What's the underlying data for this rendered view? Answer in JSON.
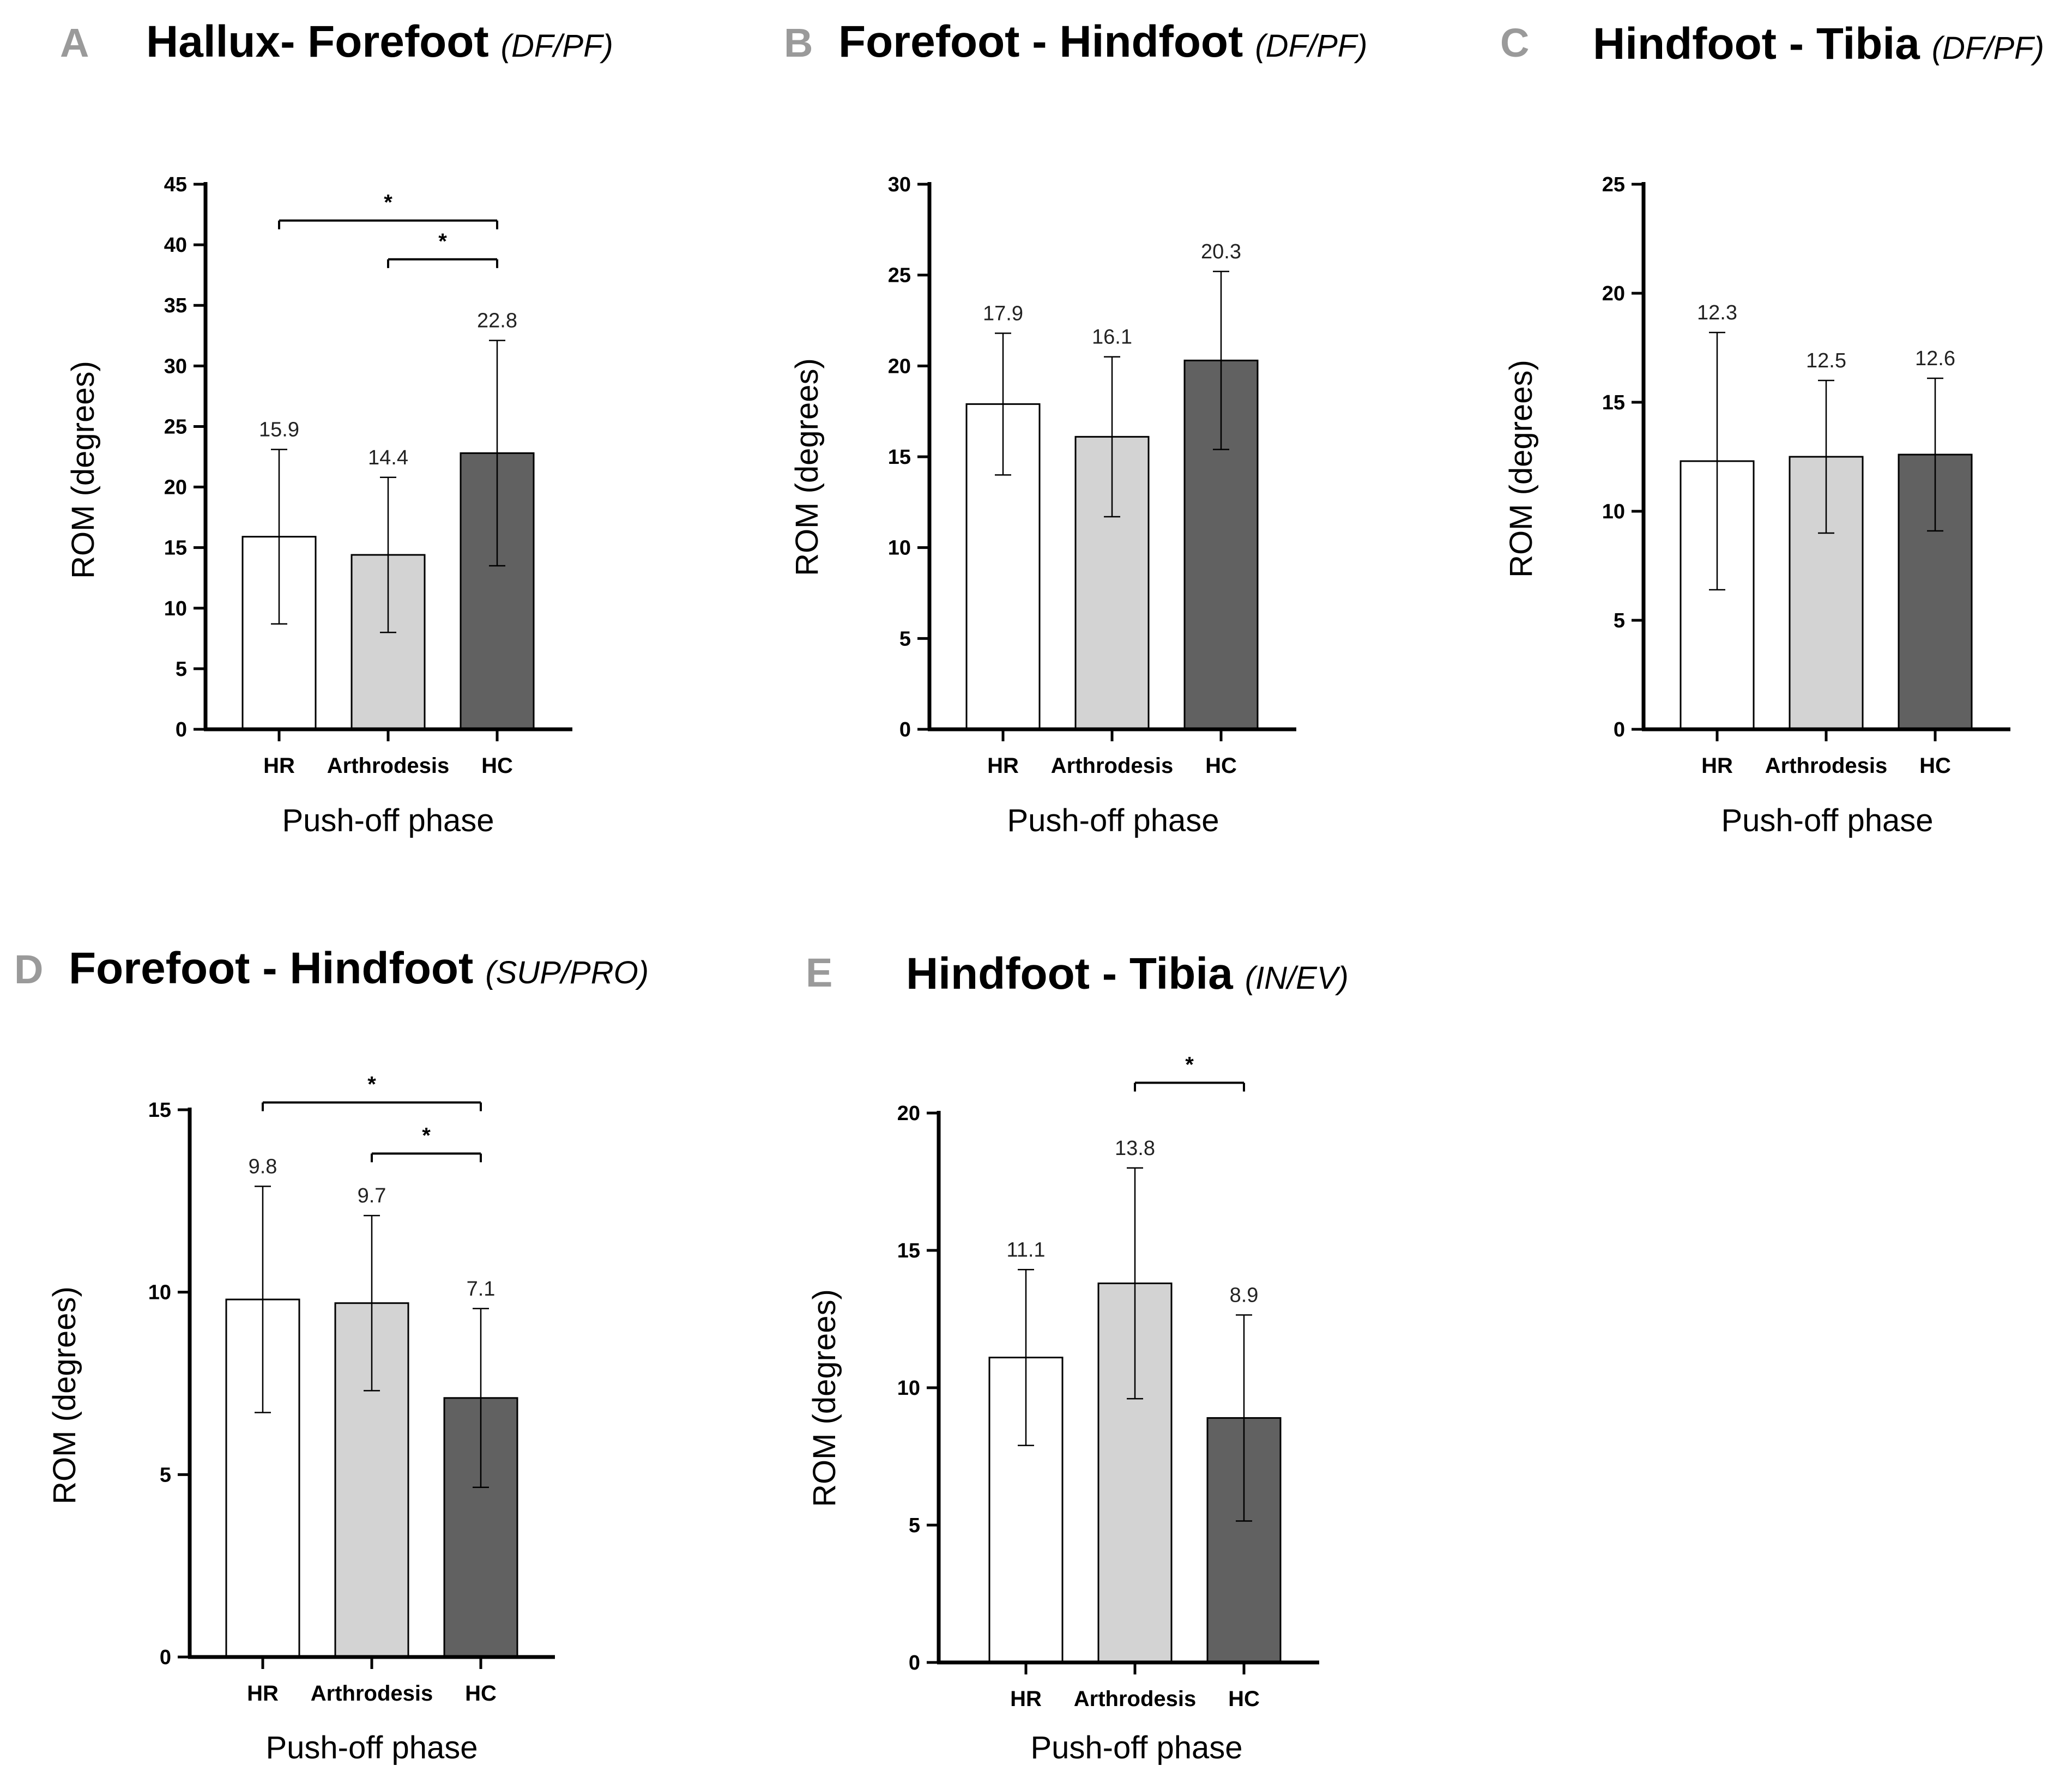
{
  "figure": {
    "colors": {
      "HR": "#ffffff",
      "Arthrodesis": "#d3d3d3",
      "HC": "#616161",
      "axis": "#000000",
      "panel_letter": "#9a9a9a"
    }
  },
  "chart_data": [
    {
      "panel": "A",
      "type": "bar",
      "title": "Hallux- Forefoot",
      "subtitle": "(DF/PF)",
      "xlabel": "Push-off phase",
      "ylabel": "ROM (degrees)",
      "ylim": [
        0,
        45
      ],
      "yticks": [
        0,
        5,
        10,
        15,
        20,
        25,
        30,
        35,
        40,
        45
      ],
      "categories": [
        "HR",
        "Arthrodesis",
        "HC"
      ],
      "values": [
        15.9,
        14.4,
        22.8
      ],
      "value_labels": [
        "15.9",
        "14.4",
        "22.8"
      ],
      "errors": [
        7.2,
        6.4,
        9.3
      ],
      "significance": [
        {
          "from": 0,
          "to": 2,
          "y": 42.0,
          "label": "*"
        },
        {
          "from": 1,
          "to": 2,
          "y": 38.8,
          "label": "*"
        }
      ]
    },
    {
      "panel": "B",
      "type": "bar",
      "title": "Forefoot - Hindfoot",
      "subtitle": "(DF/PF)",
      "xlabel": "Push-off phase",
      "ylabel": "ROM (degrees)",
      "ylim": [
        0,
        30
      ],
      "yticks": [
        0,
        5,
        10,
        15,
        20,
        25,
        30
      ],
      "categories": [
        "HR",
        "Arthrodesis",
        "HC"
      ],
      "values": [
        17.9,
        16.1,
        20.3
      ],
      "value_labels": [
        "17.9",
        "16.1",
        "20.3"
      ],
      "errors": [
        3.9,
        4.4,
        4.9
      ],
      "significance": []
    },
    {
      "panel": "C",
      "type": "bar",
      "title": "Hindfoot - Tibia",
      "subtitle": "(DF/PF)",
      "xlabel": "Push-off phase",
      "ylabel": "ROM (degrees)",
      "ylim": [
        0,
        25
      ],
      "yticks": [
        0,
        5,
        10,
        15,
        20,
        25
      ],
      "categories": [
        "HR",
        "Arthrodesis",
        "HC"
      ],
      "values": [
        12.3,
        12.5,
        12.6
      ],
      "value_labels": [
        "12.3",
        "12.5",
        "12.6"
      ],
      "errors": [
        5.9,
        3.5,
        3.5
      ],
      "significance": []
    },
    {
      "panel": "D",
      "type": "bar",
      "title": "Forefoot - Hindfoot",
      "subtitle": "(SUP/PRO)",
      "xlabel": "Push-off phase",
      "ylabel": "ROM (degrees)",
      "ylim": [
        0,
        15
      ],
      "yticks": [
        0,
        5,
        10,
        15
      ],
      "categories": [
        "HR",
        "Arthrodesis",
        "HC"
      ],
      "values": [
        9.8,
        9.7,
        7.1
      ],
      "value_labels": [
        "9.8",
        "9.7",
        "7.1"
      ],
      "errors": [
        3.1,
        2.4,
        2.45
      ],
      "significance": [
        {
          "from": 0,
          "to": 2,
          "y": 15.2,
          "label": "*"
        },
        {
          "from": 1,
          "to": 2,
          "y": 13.8,
          "label": "*"
        }
      ]
    },
    {
      "panel": "E",
      "type": "bar",
      "title": "Hindfoot - Tibia",
      "subtitle": "(IN/EV)",
      "xlabel": "Push-off phase",
      "ylabel": "ROM (degrees)",
      "ylim": [
        0,
        20
      ],
      "yticks": [
        0,
        5,
        10,
        15,
        20
      ],
      "categories": [
        "HR",
        "Arthrodesis",
        "HC"
      ],
      "values": [
        11.1,
        13.8,
        8.9
      ],
      "value_labels": [
        "11.1",
        "13.8",
        "8.9"
      ],
      "errors": [
        3.2,
        4.2,
        3.75
      ],
      "significance": [
        {
          "from": 1,
          "to": 2,
          "y": 21.1,
          "label": "*"
        }
      ]
    }
  ]
}
